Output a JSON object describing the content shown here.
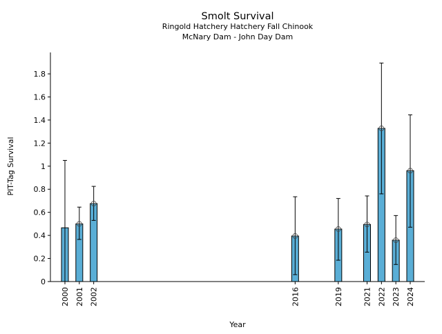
{
  "chart_data": {
    "type": "bar",
    "title": "Smolt Survival",
    "subtitle_lines": [
      "Ringold Hatchery Hatchery Fall Chinook",
      "McNary Dam - John Day Dam"
    ],
    "xlabel": "Year",
    "ylabel": "PIT-Tag Survival",
    "xlim": [
      1999,
      2025
    ],
    "ylim": [
      0,
      1.98
    ],
    "yticks": [
      0,
      0.2,
      0.4,
      0.6,
      0.8,
      1,
      1.2,
      1.4,
      1.6,
      1.8
    ],
    "ytick_labels": [
      "0",
      "0.2",
      "0.4",
      "0.6",
      "0.8",
      "1",
      "1.2",
      "1.4",
      "1.6",
      "1.8"
    ],
    "categories": [
      "2000",
      "2001",
      "2002",
      "2016",
      "2019",
      "2021",
      "2022",
      "2023",
      "2024"
    ],
    "x": [
      2000,
      2001,
      2002,
      2016,
      2019,
      2021,
      2022,
      2023,
      2024
    ],
    "values": [
      0.466,
      0.5,
      0.676,
      0.395,
      0.455,
      0.495,
      1.328,
      0.359,
      0.961
    ],
    "error_low": [
      0.0,
      0.365,
      0.53,
      0.06,
      0.185,
      0.255,
      0.76,
      0.148,
      0.471
    ],
    "error_high": [
      1.05,
      0.645,
      0.825,
      0.735,
      0.72,
      0.742,
      1.894,
      0.572,
      1.445
    ],
    "point_marker": [
      false,
      true,
      true,
      true,
      true,
      true,
      true,
      true,
      true
    ],
    "bar_color": "#5aaed6",
    "grid": false
  }
}
